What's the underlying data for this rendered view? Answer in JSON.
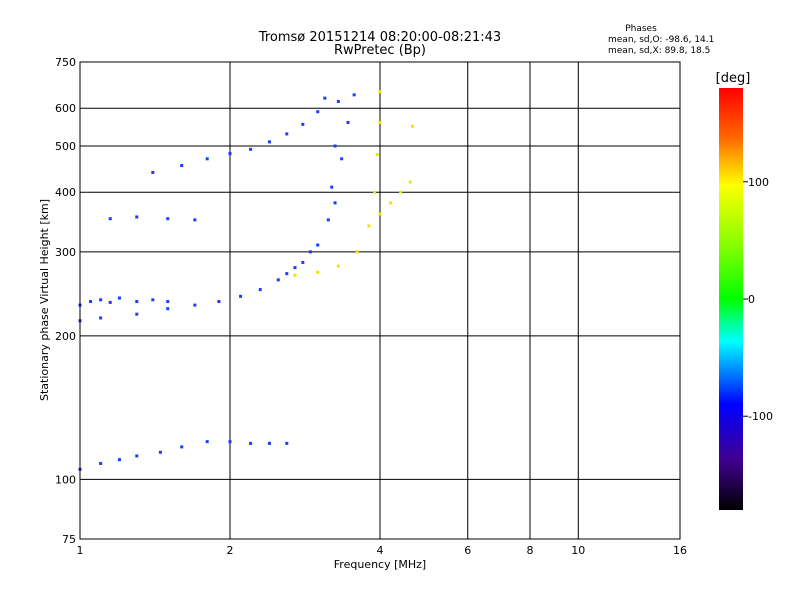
{
  "chart_data": {
    "type": "scatter",
    "title": "Tromsø 20151214 08:20:00-08:21:43",
    "subtitle": "RwPretec (Bp)",
    "xlabel": "Frequency [MHz]",
    "ylabel": "Stationary phase Virtual Height [km]",
    "x_scale": "log",
    "y_scale": "log",
    "xlim": [
      1,
      16
    ],
    "ylim": [
      75,
      750
    ],
    "x_ticks": [
      1,
      2,
      4,
      6,
      8,
      10,
      16
    ],
    "y_ticks": [
      75,
      100,
      200,
      300,
      400,
      500,
      600,
      750
    ],
    "grid": true,
    "legend": {
      "heading": "Phases",
      "lines": [
        "mean, sd,O: -98.6, 14.1",
        "mean, sd,X:  89.8, 18.5"
      ]
    },
    "colorbar": {
      "label": "[deg]",
      "ticks": [
        100,
        0,
        -100
      ],
      "range": [
        -180,
        180
      ]
    },
    "series": [
      {
        "name": "O",
        "color_deg": -100,
        "traces": [
          {
            "x": [
              1.0,
              1.1,
              1.3,
              1.5,
              1.7,
              1.9,
              2.1,
              2.3,
              2.5,
              2.7,
              2.9
            ],
            "y": [
              215,
              218,
              222,
              228,
              232,
              236,
              242,
              250,
              262,
              278,
              300
            ]
          },
          {
            "x": [
              1.0,
              1.05,
              1.1,
              1.15,
              1.2,
              1.3,
              1.4,
              1.5
            ],
            "y": [
              232,
              236,
              238,
              235,
              240,
              236,
              238,
              236
            ]
          },
          {
            "x": [
              1.4,
              1.6,
              1.8,
              2.0,
              2.2,
              2.4,
              2.6,
              2.8,
              3.0,
              3.1
            ],
            "y": [
              440,
              455,
              470,
              482,
              492,
              510,
              530,
              555,
              590,
              630
            ]
          },
          {
            "x": [
              1.15,
              1.3,
              1.5,
              1.7
            ],
            "y": [
              352,
              355,
              352,
              350
            ]
          },
          {
            "x": [
              2.6,
              2.8,
              3.0,
              3.15,
              3.2,
              3.25,
              3.3
            ],
            "y": [
              270,
              285,
              310,
              350,
              410,
              500,
              620
            ]
          },
          {
            "x": [
              3.25,
              3.35,
              3.45,
              3.55
            ],
            "y": [
              380,
              470,
              560,
              640
            ]
          },
          {
            "x": [
              1.0,
              1.1,
              1.2,
              1.3,
              1.45,
              1.6,
              1.8,
              2.0,
              2.2,
              2.4,
              2.6
            ],
            "y": [
              105,
              108,
              110,
              112,
              114,
              117,
              120,
              120,
              119,
              119,
              119
            ]
          }
        ]
      },
      {
        "name": "X",
        "color_deg": 90,
        "traces": [
          {
            "x": [
              2.7,
              3.0,
              3.3,
              3.6,
              3.8,
              3.9,
              3.95,
              4.0,
              4.0
            ],
            "y": [
              268,
              272,
              280,
              300,
              340,
              400,
              480,
              560,
              650
            ]
          },
          {
            "x": [
              4.0,
              4.2,
              4.4,
              4.6,
              4.65
            ],
            "y": [
              360,
              380,
              400,
              420,
              550
            ]
          }
        ]
      }
    ]
  }
}
